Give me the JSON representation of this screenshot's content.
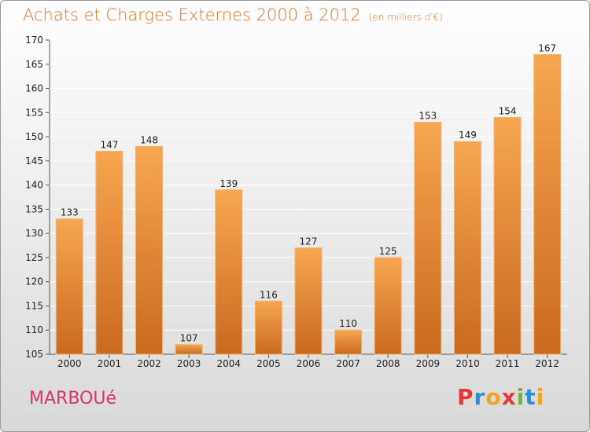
{
  "header": {
    "title": "Achats et Charges Externes 2000 à 2012",
    "subtitle": "(en milliers d'€)"
  },
  "footer": {
    "place": "MARBOUé",
    "logo_text": "Proxiti"
  },
  "colors": {
    "bar_light": "#f5a24e",
    "bar_dark": "#c86a1e",
    "title": "#e0762a",
    "place": "#d9336a"
  },
  "chart_data": {
    "type": "bar",
    "title": "Achats et Charges Externes 2000 à 2012",
    "subtitle": "(en milliers d'€)",
    "categories": [
      "2000",
      "2001",
      "2002",
      "2003",
      "2004",
      "2005",
      "2006",
      "2007",
      "2008",
      "2009",
      "2010",
      "2011",
      "2012"
    ],
    "values": [
      133,
      147,
      148,
      107,
      139,
      116,
      127,
      110,
      125,
      153,
      149,
      154,
      167
    ],
    "ylim": [
      105,
      170
    ],
    "yticks": [
      105,
      110,
      115,
      120,
      125,
      130,
      135,
      140,
      145,
      150,
      155,
      160,
      165,
      170
    ],
    "grid": true,
    "xlabel": "",
    "ylabel": ""
  }
}
